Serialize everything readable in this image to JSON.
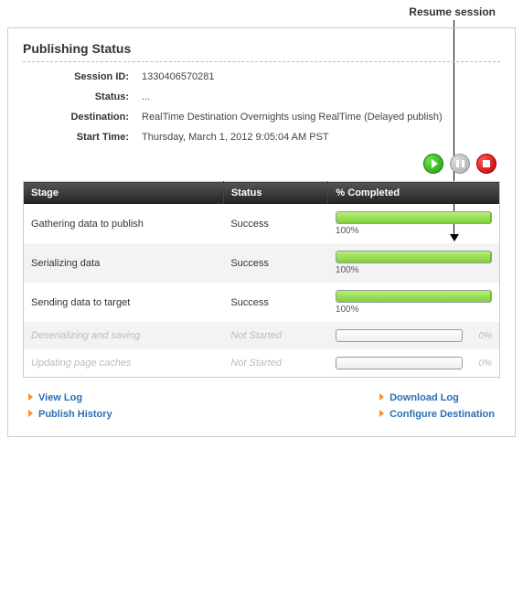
{
  "annotation": "Resume session",
  "panel": {
    "title": "Publishing Status",
    "fields": {
      "session_id": {
        "label": "Session ID:",
        "value": "1330406570281"
      },
      "status": {
        "label": "Status:",
        "value": "..."
      },
      "destination": {
        "label": "Destination:",
        "value": "RealTime Destination Overnights using RealTime (Delayed publish)"
      },
      "start_time": {
        "label": "Start Time:",
        "value": "Thursday, March 1, 2012 9:05:04 AM PST"
      }
    }
  },
  "controls": {
    "play": {
      "name": "play-button",
      "enabled": true
    },
    "pause": {
      "name": "resume-button",
      "enabled": false
    },
    "stop": {
      "name": "stop-button",
      "enabled": true
    }
  },
  "table": {
    "columns": {
      "stage": "Stage",
      "status": "Status",
      "completed": "% Completed"
    },
    "header_bg_from": "#555555",
    "header_bg_to": "#222222",
    "row_alt_bg": "#f3f3f3",
    "progress_fill_colors": {
      "green_from": "#b6ef7a",
      "green_to": "#7fd038"
    },
    "rows": [
      {
        "stage": "Gathering data to publish",
        "status": "Success",
        "pct": 100,
        "pct_label": "100%",
        "dim": false,
        "alt": false
      },
      {
        "stage": "Serializing data",
        "status": "Success",
        "pct": 100,
        "pct_label": "100%",
        "dim": false,
        "alt": true
      },
      {
        "stage": "Sending data to target",
        "status": "Success",
        "pct": 100,
        "pct_label": "100%",
        "dim": false,
        "alt": false
      },
      {
        "stage": "Deserializing and saving",
        "status": "Not Started",
        "pct": 0,
        "pct_label": "0%",
        "dim": true,
        "alt": true
      },
      {
        "stage": "Updating page caches",
        "status": "Not Started",
        "pct": 0,
        "pct_label": "0%",
        "dim": true,
        "alt": false
      }
    ]
  },
  "links": {
    "left": [
      {
        "name": "view-log-link",
        "label": "View Log"
      },
      {
        "name": "publish-history-link",
        "label": "Publish History"
      }
    ],
    "right": [
      {
        "name": "download-log-link",
        "label": "Download Log"
      },
      {
        "name": "configure-destination-link",
        "label": "Configure Destination"
      }
    ]
  }
}
